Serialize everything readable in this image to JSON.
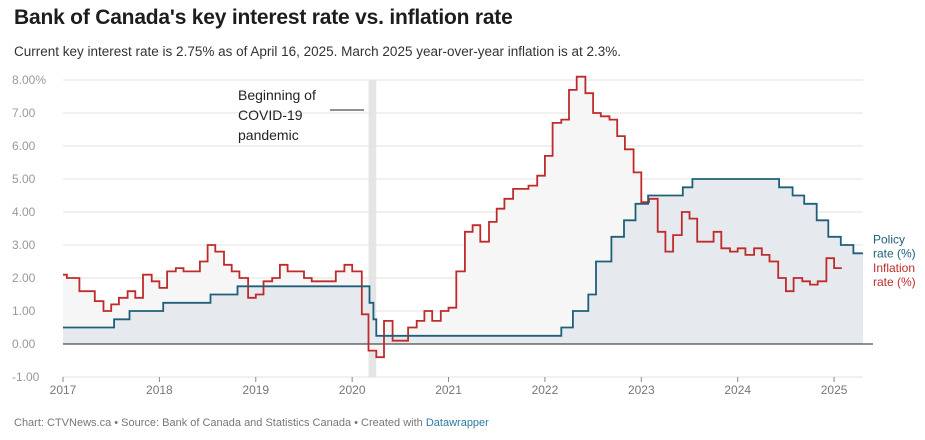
{
  "title": "Bank of Canada's key interest rate vs. inflation rate",
  "subtitle": "Current key interest rate is 2.75% as of April 16, 2025. March 2025 year-over-year inflation is at 2.3%.",
  "footer": {
    "text": "Chart: CTVNews.ca • Source: Bank of Canada and Statistics Canada • Created with ",
    "link": "Datawrapper"
  },
  "colors": {
    "policy": "#1f5f7a",
    "inflation": "#bf2b2b",
    "policy_fill": "#e6eaee",
    "inflation_fill": "#f6f6f6",
    "covid_band": "#e5e5e5"
  },
  "chart_data": {
    "type": "line",
    "x_unit": "year (decimal)",
    "xlim": [
      2017.0,
      2025.3
    ],
    "ylim": [
      -1.0,
      8.0
    ],
    "x_ticks": [
      2017,
      2018,
      2019,
      2020,
      2021,
      2022,
      2023,
      2024,
      2025
    ],
    "x_tick_labels": [
      "2017",
      "2018",
      "2019",
      "2020",
      "2021",
      "2022",
      "2023",
      "2024",
      "2025"
    ],
    "y_ticks": [
      -1,
      0,
      1,
      2,
      3,
      4,
      5,
      6,
      7,
      8
    ],
    "y_tick_labels": [
      "-1.00",
      "0.00",
      "1.00",
      "2.00",
      "3.00",
      "4.00",
      "5.00",
      "6.00",
      "7.00",
      "8.00%"
    ],
    "grid": "horizontal",
    "annotation": {
      "lines": [
        "Beginning of",
        "COVID-19",
        "pandemic"
      ],
      "x_start": 2020.17,
      "x_end": 2020.25
    },
    "series": [
      {
        "name": "Policy rate (%)",
        "label_lines": [
          "Policy",
          "rate (%)"
        ],
        "step": true,
        "points": [
          [
            2017.0,
            0.5
          ],
          [
            2017.53,
            0.75
          ],
          [
            2017.69,
            1.0
          ],
          [
            2018.04,
            1.25
          ],
          [
            2018.53,
            1.5
          ],
          [
            2018.81,
            1.75
          ],
          [
            2020.18,
            1.25
          ],
          [
            2020.22,
            0.75
          ],
          [
            2020.25,
            0.25
          ],
          [
            2022.17,
            0.5
          ],
          [
            2022.29,
            1.0
          ],
          [
            2022.45,
            1.5
          ],
          [
            2022.53,
            2.5
          ],
          [
            2022.69,
            3.25
          ],
          [
            2022.82,
            3.75
          ],
          [
            2022.94,
            4.25
          ],
          [
            2023.07,
            4.5
          ],
          [
            2023.43,
            4.75
          ],
          [
            2023.53,
            5.0
          ],
          [
            2024.43,
            4.75
          ],
          [
            2024.57,
            4.5
          ],
          [
            2024.69,
            4.25
          ],
          [
            2024.82,
            3.75
          ],
          [
            2024.94,
            3.25
          ],
          [
            2025.07,
            3.0
          ],
          [
            2025.2,
            2.75
          ],
          [
            2025.3,
            2.75
          ]
        ]
      },
      {
        "name": "Inflation rate (%)",
        "label_lines": [
          "Inflation",
          "rate (%)"
        ],
        "step": true,
        "points": [
          [
            2017.0,
            2.1
          ],
          [
            2017.04,
            2.0
          ],
          [
            2017.17,
            1.6
          ],
          [
            2017.33,
            1.3
          ],
          [
            2017.42,
            1.0
          ],
          [
            2017.5,
            1.2
          ],
          [
            2017.58,
            1.4
          ],
          [
            2017.67,
            1.6
          ],
          [
            2017.75,
            1.4
          ],
          [
            2017.83,
            2.1
          ],
          [
            2017.92,
            1.9
          ],
          [
            2018.0,
            1.7
          ],
          [
            2018.08,
            2.2
          ],
          [
            2018.17,
            2.3
          ],
          [
            2018.25,
            2.2
          ],
          [
            2018.42,
            2.5
          ],
          [
            2018.5,
            3.0
          ],
          [
            2018.58,
            2.8
          ],
          [
            2018.67,
            2.4
          ],
          [
            2018.75,
            2.2
          ],
          [
            2018.83,
            2.0
          ],
          [
            2018.92,
            1.4
          ],
          [
            2019.0,
            1.5
          ],
          [
            2019.08,
            1.9
          ],
          [
            2019.17,
            2.0
          ],
          [
            2019.25,
            2.4
          ],
          [
            2019.33,
            2.2
          ],
          [
            2019.5,
            2.0
          ],
          [
            2019.58,
            1.9
          ],
          [
            2019.83,
            2.2
          ],
          [
            2019.92,
            2.4
          ],
          [
            2020.0,
            2.2
          ],
          [
            2020.1,
            0.9
          ],
          [
            2020.17,
            -0.2
          ],
          [
            2020.25,
            -0.4
          ],
          [
            2020.33,
            0.7
          ],
          [
            2020.42,
            0.1
          ],
          [
            2020.58,
            0.5
          ],
          [
            2020.67,
            0.7
          ],
          [
            2020.75,
            1.0
          ],
          [
            2020.83,
            0.7
          ],
          [
            2020.92,
            1.0
          ],
          [
            2021.0,
            1.1
          ],
          [
            2021.08,
            2.2
          ],
          [
            2021.17,
            3.4
          ],
          [
            2021.25,
            3.6
          ],
          [
            2021.33,
            3.1
          ],
          [
            2021.42,
            3.7
          ],
          [
            2021.5,
            4.1
          ],
          [
            2021.58,
            4.4
          ],
          [
            2021.67,
            4.7
          ],
          [
            2021.83,
            4.8
          ],
          [
            2021.92,
            5.1
          ],
          [
            2022.0,
            5.7
          ],
          [
            2022.08,
            6.7
          ],
          [
            2022.17,
            6.8
          ],
          [
            2022.25,
            7.7
          ],
          [
            2022.33,
            8.1
          ],
          [
            2022.42,
            7.6
          ],
          [
            2022.5,
            7.0
          ],
          [
            2022.58,
            6.9
          ],
          [
            2022.67,
            6.8
          ],
          [
            2022.75,
            6.3
          ],
          [
            2022.83,
            5.9
          ],
          [
            2022.92,
            5.2
          ],
          [
            2023.0,
            4.3
          ],
          [
            2023.08,
            4.4
          ],
          [
            2023.17,
            3.4
          ],
          [
            2023.25,
            2.8
          ],
          [
            2023.33,
            3.3
          ],
          [
            2023.42,
            4.0
          ],
          [
            2023.5,
            3.8
          ],
          [
            2023.58,
            3.1
          ],
          [
            2023.75,
            3.4
          ],
          [
            2023.83,
            2.9
          ],
          [
            2023.92,
            2.8
          ],
          [
            2024.0,
            2.9
          ],
          [
            2024.08,
            2.7
          ],
          [
            2024.17,
            2.9
          ],
          [
            2024.25,
            2.7
          ],
          [
            2024.33,
            2.5
          ],
          [
            2024.42,
            2.0
          ],
          [
            2024.5,
            1.6
          ],
          [
            2024.58,
            2.0
          ],
          [
            2024.67,
            1.9
          ],
          [
            2024.75,
            1.8
          ],
          [
            2024.83,
            1.9
          ],
          [
            2024.92,
            2.6
          ],
          [
            2025.0,
            2.3
          ],
          [
            2025.08,
            2.3
          ]
        ]
      }
    ]
  }
}
